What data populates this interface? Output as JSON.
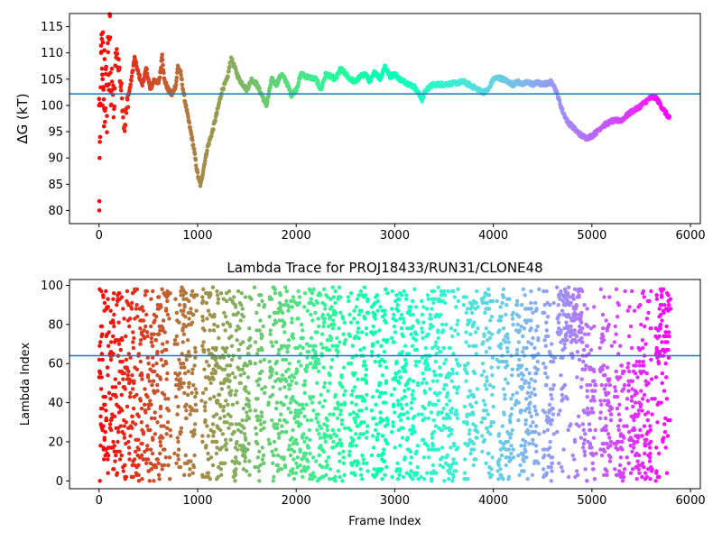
{
  "chart_data": [
    {
      "type": "scatter",
      "title": "",
      "xlabel": "",
      "ylabel": "ΔG (kT)",
      "xlim": [
        -300,
        6100
      ],
      "ylim": [
        77.5,
        117.5
      ],
      "xticks": [
        0,
        1000,
        2000,
        3000,
        4000,
        5000,
        6000
      ],
      "yticks": [
        80,
        85,
        90,
        95,
        100,
        105,
        110,
        115
      ],
      "hline": 102.2,
      "colormap": "rainbow (red at frame 0 → violet at last frame)",
      "grid": false,
      "legend": "none",
      "x_range": [
        0,
        5790
      ],
      "trace_points": [
        [
          0,
          100
        ],
        [
          3,
          80
        ],
        [
          6,
          90
        ],
        [
          10,
          94
        ],
        [
          15,
          100
        ],
        [
          20,
          110
        ],
        [
          25,
          113.5
        ],
        [
          30,
          107
        ],
        [
          35,
          100
        ],
        [
          40,
          112
        ],
        [
          45,
          103
        ],
        [
          50,
          96
        ],
        [
          55,
          110.5
        ],
        [
          60,
          99
        ],
        [
          70,
          106
        ],
        [
          80,
          98
        ],
        [
          90,
          113
        ],
        [
          100,
          104
        ],
        [
          110,
          117
        ],
        [
          120,
          100
        ],
        [
          130,
          107
        ],
        [
          150,
          97
        ],
        [
          170,
          110
        ],
        [
          200,
          108
        ],
        [
          230,
          102
        ],
        [
          260,
          96
        ],
        [
          290,
          101
        ],
        [
          320,
          104
        ],
        [
          360,
          109
        ],
        [
          400,
          106
        ],
        [
          440,
          104
        ],
        [
          480,
          107
        ],
        [
          520,
          103
        ],
        [
          560,
          105
        ],
        [
          600,
          104
        ],
        [
          620,
          106
        ],
        [
          640,
          110
        ],
        [
          660,
          105
        ],
        [
          700,
          103
        ],
        [
          740,
          102
        ],
        [
          780,
          104
        ],
        [
          800,
          107.5
        ],
        [
          830,
          106
        ],
        [
          860,
          102
        ],
        [
          900,
          98
        ],
        [
          930,
          95
        ],
        [
          960,
          92
        ],
        [
          990,
          88
        ],
        [
          1010,
          86
        ],
        [
          1030,
          84.8
        ],
        [
          1060,
          88
        ],
        [
          1100,
          92
        ],
        [
          1150,
          95
        ],
        [
          1200,
          99
        ],
        [
          1250,
          103
        ],
        [
          1300,
          105
        ],
        [
          1340,
          109
        ],
        [
          1380,
          107
        ],
        [
          1420,
          105
        ],
        [
          1460,
          104
        ],
        [
          1500,
          103
        ],
        [
          1550,
          105
        ],
        [
          1600,
          104
        ],
        [
          1650,
          102
        ],
        [
          1700,
          100
        ],
        [
          1720,
          102
        ],
        [
          1750,
          105
        ],
        [
          1800,
          104
        ],
        [
          1850,
          106
        ],
        [
          1900,
          104.5
        ],
        [
          1950,
          102
        ],
        [
          2000,
          103
        ],
        [
          2050,
          106
        ],
        [
          2100,
          105.5
        ],
        [
          2200,
          105
        ],
        [
          2250,
          103
        ],
        [
          2300,
          106
        ],
        [
          2400,
          105
        ],
        [
          2450,
          107
        ],
        [
          2500,
          106
        ],
        [
          2550,
          105
        ],
        [
          2600,
          104.5
        ],
        [
          2650,
          105.5
        ],
        [
          2700,
          106
        ],
        [
          2750,
          104.5
        ],
        [
          2800,
          106.5
        ],
        [
          2850,
          105
        ],
        [
          2900,
          107.5
        ],
        [
          2950,
          105.5
        ],
        [
          3000,
          106
        ],
        [
          3050,
          105
        ],
        [
          3100,
          104.5
        ],
        [
          3150,
          104
        ],
        [
          3200,
          103.5
        ],
        [
          3250,
          102
        ],
        [
          3280,
          101
        ],
        [
          3300,
          102.5
        ],
        [
          3350,
          103.5
        ],
        [
          3400,
          104
        ],
        [
          3500,
          104
        ],
        [
          3600,
          104.2
        ],
        [
          3700,
          104.5
        ],
        [
          3800,
          103.5
        ],
        [
          3850,
          103
        ],
        [
          3900,
          102.5
        ],
        [
          3950,
          103
        ],
        [
          4000,
          105
        ],
        [
          4050,
          105.3
        ],
        [
          4100,
          105
        ],
        [
          4150,
          104.5
        ],
        [
          4200,
          104
        ],
        [
          4250,
          104.5
        ],
        [
          4300,
          104
        ],
        [
          4350,
          104.5
        ],
        [
          4400,
          104
        ],
        [
          4450,
          104.3
        ],
        [
          4500,
          104
        ],
        [
          4550,
          104.2
        ],
        [
          4600,
          104.5
        ],
        [
          4650,
          102
        ],
        [
          4700,
          99
        ],
        [
          4750,
          97
        ],
        [
          4800,
          96
        ],
        [
          4850,
          95
        ],
        [
          4900,
          94.2
        ],
        [
          4950,
          93.8
        ],
        [
          5000,
          94.2
        ],
        [
          5050,
          95
        ],
        [
          5100,
          96
        ],
        [
          5150,
          96.5
        ],
        [
          5200,
          97
        ],
        [
          5300,
          97.2
        ],
        [
          5350,
          98
        ],
        [
          5400,
          98.8
        ],
        [
          5450,
          99.3
        ],
        [
          5500,
          100
        ],
        [
          5550,
          100.8
        ],
        [
          5600,
          101.5
        ],
        [
          5650,
          101.5
        ],
        [
          5700,
          100
        ],
        [
          5750,
          98.5
        ],
        [
          5790,
          97.5
        ]
      ]
    },
    {
      "type": "scatter",
      "title": "Lambda Trace for PROJ18433/RUN31/CLONE48",
      "xlabel": "Frame Index",
      "ylabel": "Lambda Index",
      "xlim": [
        -300,
        6100
      ],
      "ylim": [
        -4,
        103
      ],
      "xticks": [
        0,
        1000,
        2000,
        3000,
        4000,
        5000,
        6000
      ],
      "yticks": [
        0,
        20,
        40,
        60,
        80,
        100
      ],
      "hline": 64,
      "colormap": "rainbow (red at frame 0 → violet at last frame)",
      "grid": false,
      "legend": "none",
      "x_range": [
        0,
        5790
      ],
      "lambda_range": [
        0,
        99
      ],
      "band_gaps": [
        [
          720,
          770
        ],
        [
          990,
          1040
        ],
        [
          1540,
          1580
        ],
        [
          1680,
          1720
        ],
        [
          2500,
          2530
        ],
        [
          2730,
          2760
        ],
        [
          2930,
          2970
        ],
        [
          3240,
          3270
        ],
        [
          3650,
          3700
        ],
        [
          3840,
          3880
        ],
        [
          4000,
          4040
        ],
        [
          4200,
          4230
        ],
        [
          4460,
          4500
        ],
        [
          4620,
          4650
        ],
        [
          5040,
          5080
        ],
        [
          5200,
          5230
        ],
        [
          5330,
          5360
        ],
        [
          5610,
          5640
        ]
      ]
    }
  ]
}
